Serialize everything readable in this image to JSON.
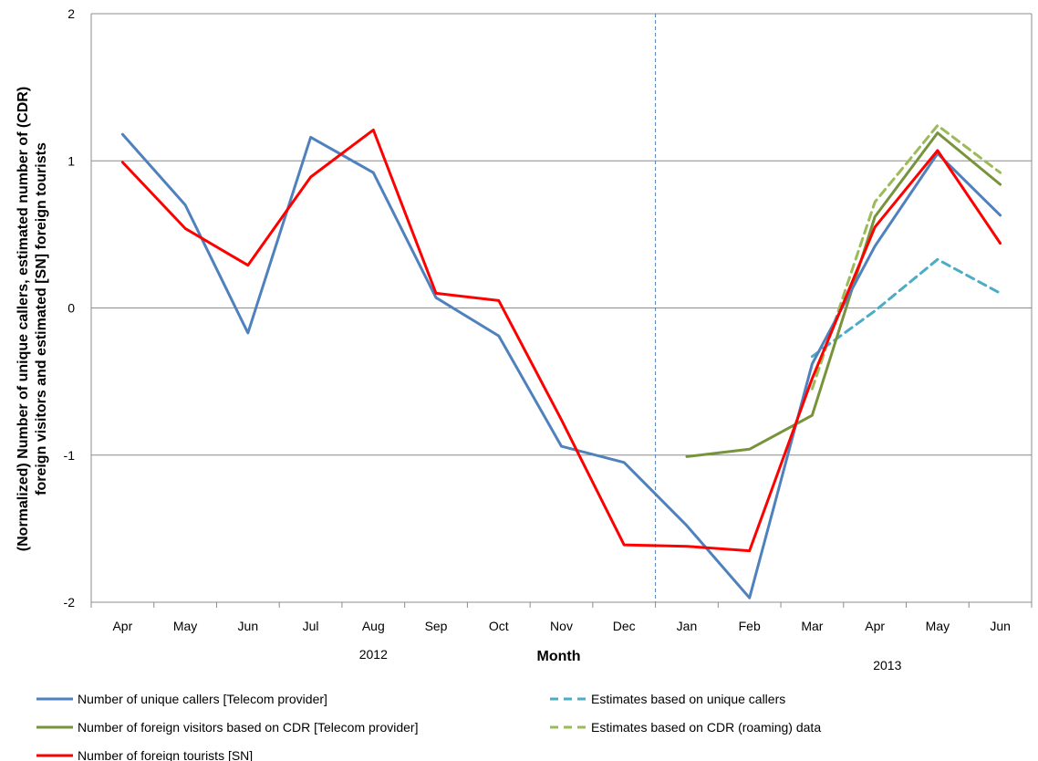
{
  "chart_data": {
    "type": "line",
    "title": "",
    "xlabel": "Month",
    "ylabel_lines": [
      "(Normalized) Number of unique callers, estimated number of (CDR)",
      "foreign visitors  and estimated [SN] foreign tourists"
    ],
    "ylim": [
      -2,
      2
    ],
    "yticks": [
      -2,
      -1,
      0,
      1,
      2
    ],
    "grid": "horizontal",
    "categories": [
      "Apr",
      "May",
      "Jun",
      "Jul",
      "Aug",
      "Sep",
      "Oct",
      "Nov",
      "Dec",
      "Jan",
      "Feb",
      "Mar",
      "Apr",
      "May",
      "Jun"
    ],
    "year_labels": [
      {
        "label": "2012",
        "months": "Apr–Dec"
      },
      {
        "label": "2013",
        "months": "Jan–Jun"
      }
    ],
    "year_divider_after_index": 8,
    "legend_position": "bottom",
    "series": [
      {
        "name": "Number of unique callers [Telecom provider]",
        "color": "#4F81BD",
        "dash": "solid",
        "values": [
          1.18,
          0.7,
          -0.17,
          1.16,
          0.92,
          0.07,
          -0.19,
          -0.94,
          -1.05,
          -1.48,
          -1.97,
          -0.38,
          0.42,
          1.05,
          0.63
        ]
      },
      {
        "name": "Number of foreign visitors based on CDR [Telecom provider]",
        "color": "#77933C",
        "dash": "solid",
        "values": [
          null,
          null,
          null,
          null,
          null,
          null,
          null,
          null,
          null,
          -1.01,
          -0.96,
          -0.73,
          0.62,
          1.19,
          0.84
        ]
      },
      {
        "name": "Number of foreign tourists [SN]",
        "color": "#FF0000",
        "dash": "solid",
        "values": [
          0.99,
          0.54,
          0.29,
          0.89,
          1.21,
          0.1,
          0.05,
          -0.76,
          -1.61,
          -1.62,
          -1.65,
          -0.48,
          0.55,
          1.07,
          0.44
        ]
      },
      {
        "name": "Estimates based on unique callers",
        "color": "#4BACC6",
        "dash": "dashed",
        "values": [
          null,
          null,
          null,
          null,
          null,
          null,
          null,
          null,
          null,
          null,
          null,
          -0.33,
          -0.02,
          0.33,
          0.1
        ]
      },
      {
        "name": "Estimates based on CDR (roaming) data",
        "color": "#9BBB59",
        "dash": "dashed",
        "values": [
          null,
          null,
          null,
          null,
          null,
          null,
          null,
          null,
          null,
          null,
          null,
          -0.55,
          0.72,
          1.24,
          0.92
        ]
      }
    ]
  }
}
